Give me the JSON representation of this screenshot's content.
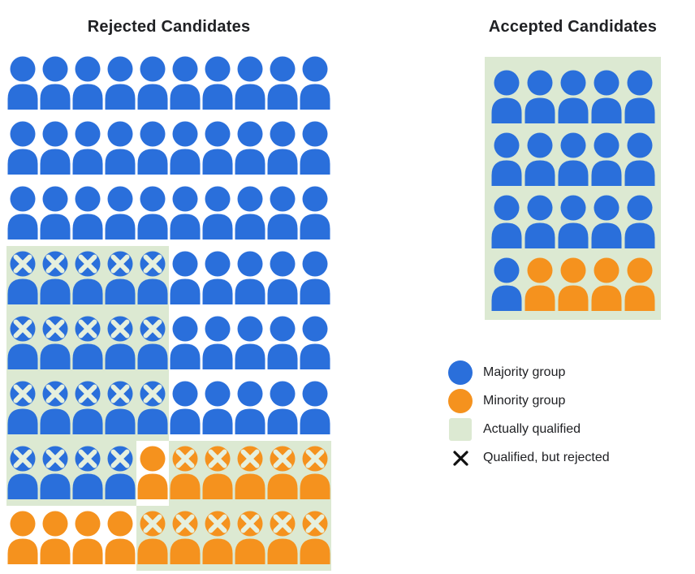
{
  "panels": {
    "rejected": {
      "title": "Rejected Candidates",
      "columns": 10,
      "grid": [
        [
          "b",
          "b",
          "b",
          "b",
          "b",
          "b",
          "b",
          "b",
          "b",
          "b"
        ],
        [
          "b",
          "b",
          "b",
          "b",
          "b",
          "b",
          "b",
          "b",
          "b",
          "b"
        ],
        [
          "b",
          "b",
          "b",
          "b",
          "b",
          "b",
          "b",
          "b",
          "b",
          "b"
        ],
        [
          "bxq",
          "bxq",
          "bxq",
          "bxq",
          "bxq",
          "b",
          "b",
          "b",
          "b",
          "b"
        ],
        [
          "bxq",
          "bxq",
          "bxq",
          "bxq",
          "bxq",
          "b",
          "b",
          "b",
          "b",
          "b"
        ],
        [
          "bxq",
          "bxq",
          "bxq",
          "bxq",
          "bxq",
          "b",
          "b",
          "b",
          "b",
          "b"
        ],
        [
          "bxq",
          "bxq",
          "bxq",
          "bxq",
          "o",
          "oxq",
          "oxq",
          "oxq",
          "oxq",
          "oxq"
        ],
        [
          "o",
          "o",
          "o",
          "o",
          "oxq",
          "oxq",
          "oxq",
          "oxq",
          "oxq",
          "oxq"
        ]
      ]
    },
    "accepted": {
      "title": "Accepted Candidates",
      "columns": 5,
      "grid": [
        [
          "bq",
          "bq",
          "bq",
          "bq",
          "bq"
        ],
        [
          "bq",
          "bq",
          "bq",
          "bq",
          "bq"
        ],
        [
          "bq",
          "bq",
          "bq",
          "bq",
          "bq"
        ],
        [
          "bq",
          "oq",
          "oq",
          "oq",
          "oq"
        ]
      ]
    }
  },
  "cell_code_meaning": {
    "b": "majority group person (blue)",
    "o": "minority group person (orange)",
    "x": "qualified-but-rejected X mark on head",
    "q": "actually qualified (light green background)"
  },
  "legend": {
    "items": [
      {
        "swatch": "majority-circle",
        "label": "Majority group"
      },
      {
        "swatch": "minority-circle",
        "label": "Minority group"
      },
      {
        "swatch": "qualified-square",
        "label": "Actually qualified"
      },
      {
        "swatch": "x-mark",
        "label": "Qualified, but rejected"
      }
    ]
  },
  "colors": {
    "majority_blue": "#2A6FDB",
    "minority_orange": "#F5921E",
    "qualified_green": "#DCE9D2",
    "x_mark_on_person": "#E6F0DE",
    "legend_x": "#111111",
    "text": "#202124",
    "background": "#FFFFFF"
  },
  "chart_data": {
    "type": "icon-array",
    "title": "",
    "legend_entries": [
      "Majority group",
      "Minority group",
      "Actually qualified",
      "Qualified, but rejected"
    ],
    "panels": [
      {
        "title": "Rejected Candidates",
        "total": 80,
        "counts": {
          "majority_not_qualified": 45,
          "majority_qualified_but_rejected": 19,
          "minority_not_qualified": 5,
          "minority_qualified_but_rejected": 11
        }
      },
      {
        "title": "Accepted Candidates",
        "total": 20,
        "counts": {
          "majority_qualified": 16,
          "minority_qualified": 4
        }
      }
    ]
  }
}
